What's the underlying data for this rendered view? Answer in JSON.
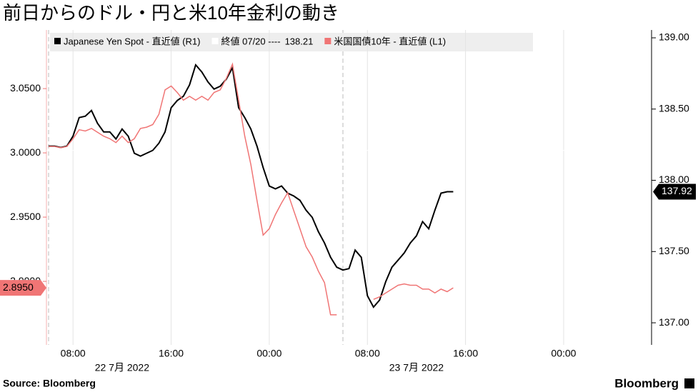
{
  "chart_data": {
    "type": "line",
    "title": "前日からのドル・円と米10年金利の動き",
    "source": "Source: Bloomberg",
    "logo": "Bloomberg",
    "date_labels": [
      {
        "value": "2022-07-22T12:00",
        "label": "22 7月 2022"
      },
      {
        "value": "2022-07-23T12:00",
        "label": "23 7月 2022"
      }
    ],
    "x": [
      "2022-07-22T06:00",
      "2022-07-22T06:30",
      "2022-07-22T07:00",
      "2022-07-22T07:30",
      "2022-07-22T08:00",
      "2022-07-22T08:30",
      "2022-07-22T09:00",
      "2022-07-22T09:30",
      "2022-07-22T10:00",
      "2022-07-22T10:30",
      "2022-07-22T11:00",
      "2022-07-22T11:30",
      "2022-07-22T12:00",
      "2022-07-22T12:30",
      "2022-07-22T13:00",
      "2022-07-22T13:30",
      "2022-07-22T14:00",
      "2022-07-22T14:30",
      "2022-07-22T15:00",
      "2022-07-22T15:30",
      "2022-07-22T16:00",
      "2022-07-22T16:30",
      "2022-07-22T17:00",
      "2022-07-22T17:30",
      "2022-07-22T18:00",
      "2022-07-22T18:30",
      "2022-07-22T19:00",
      "2022-07-22T19:30",
      "2022-07-22T20:00",
      "2022-07-22T20:30",
      "2022-07-22T21:00",
      "2022-07-22T21:30",
      "2022-07-22T22:00",
      "2022-07-22T22:30",
      "2022-07-22T23:00",
      "2022-07-22T23:30",
      "2022-07-23T00:00",
      "2022-07-23T00:30",
      "2022-07-23T01:00",
      "2022-07-23T01:30",
      "2022-07-23T02:00",
      "2022-07-23T02:30",
      "2022-07-23T03:00",
      "2022-07-23T03:30",
      "2022-07-23T04:00",
      "2022-07-23T04:30",
      "2022-07-23T05:00",
      "2022-07-23T05:30",
      "2022-07-23T06:00",
      "2022-07-23T06:30",
      "2022-07-23T07:00",
      "2022-07-23T07:30",
      "2022-07-23T08:00",
      "2022-07-23T08:30",
      "2022-07-23T09:00",
      "2022-07-23T09:30",
      "2022-07-23T10:00",
      "2022-07-23T10:30",
      "2022-07-23T11:00",
      "2022-07-23T11:30",
      "2022-07-23T12:00",
      "2022-07-23T12:30",
      "2022-07-23T13:00",
      "2022-07-23T13:30",
      "2022-07-23T14:00",
      "2022-07-23T14:30",
      "2022-07-23T15:00"
    ],
    "series": [
      {
        "name": "Japanese Yen Spot - 直近値 (R1)",
        "color": "#000000",
        "axis": "y2",
        "last_label": "137.92",
        "values": [
          138.24,
          138.24,
          138.23,
          138.24,
          138.31,
          138.44,
          138.45,
          138.49,
          138.4,
          138.34,
          138.34,
          138.29,
          138.36,
          138.31,
          138.19,
          138.17,
          138.19,
          138.21,
          138.26,
          138.34,
          138.51,
          138.56,
          138.59,
          138.67,
          138.81,
          138.76,
          138.69,
          138.64,
          138.66,
          138.71,
          138.79,
          138.51,
          138.44,
          138.36,
          138.24,
          138.09,
          137.96,
          137.94,
          137.96,
          137.91,
          137.89,
          137.86,
          137.79,
          137.74,
          137.64,
          137.56,
          137.46,
          137.39,
          137.37,
          137.38,
          137.51,
          137.46,
          137.19,
          137.11,
          137.16,
          137.29,
          137.39,
          137.44,
          137.49,
          137.56,
          137.61,
          137.71,
          137.66,
          137.79,
          137.91,
          137.92,
          137.92
        ]
      },
      {
        "name": "米国国債10年 - 直近値 (L1)",
        "color": "#f07575",
        "axis": "y",
        "last_label": "2.8950",
        "values": [
          3.005,
          3.005,
          3.004,
          3.005,
          3.011,
          3.018,
          3.017,
          3.019,
          3.016,
          3.013,
          3.011,
          3.008,
          3.013,
          3.008,
          3.011,
          3.019,
          3.02,
          3.022,
          3.03,
          3.049,
          3.052,
          3.047,
          3.041,
          3.044,
          3.041,
          3.044,
          3.041,
          3.047,
          3.049,
          3.058,
          3.069,
          3.041,
          3.013,
          2.991,
          2.963,
          2.936,
          2.941,
          2.952,
          2.961,
          2.969,
          2.955,
          2.941,
          2.927,
          2.919,
          2.908,
          2.899,
          2.874,
          2.874,
          null,
          null,
          null,
          null,
          null,
          2.886,
          2.888,
          2.891,
          2.894,
          2.897,
          2.898,
          2.897,
          2.897,
          2.894,
          2.894,
          2.891,
          2.894,
          2.892,
          2.895
        ]
      }
    ],
    "reference": {
      "name": "終値 07/20 ----",
      "value": 138.21,
      "color": "#ffffff"
    },
    "xlim": [
      "2022-07-22T05:50",
      "2022-07-24T07:10"
    ],
    "xticks": [
      {
        "value": "2022-07-22T08:00",
        "label": "08:00"
      },
      {
        "value": "2022-07-22T16:00",
        "label": "16:00"
      },
      {
        "value": "2022-07-23T00:00",
        "label": "00:00"
      },
      {
        "value": "2022-07-23T08:00",
        "label": "08:00"
      },
      {
        "value": "2022-07-23T16:00",
        "label": "16:00"
      },
      {
        "value": "2022-07-24T00:00",
        "label": "00:00"
      }
    ],
    "ylim": [
      2.8506,
      3.0956
    ],
    "yticks": [
      {
        "value": 2.9,
        "label": "2.9000"
      },
      {
        "value": 2.95,
        "label": "2.9500"
      },
      {
        "value": 3.0,
        "label": "3.0000"
      },
      {
        "value": 3.05,
        "label": "3.0500"
      }
    ],
    "y2lim": [
      136.845,
      139.055
    ],
    "y2ticks": [
      {
        "value": 137,
        "label": "137.00"
      },
      {
        "value": 137.5,
        "label": "137.50"
      },
      {
        "value": 138,
        "label": "138.00"
      },
      {
        "value": 138.5,
        "label": "138.50"
      },
      {
        "value": 139,
        "label": "139.00"
      }
    ],
    "grid": true
  }
}
